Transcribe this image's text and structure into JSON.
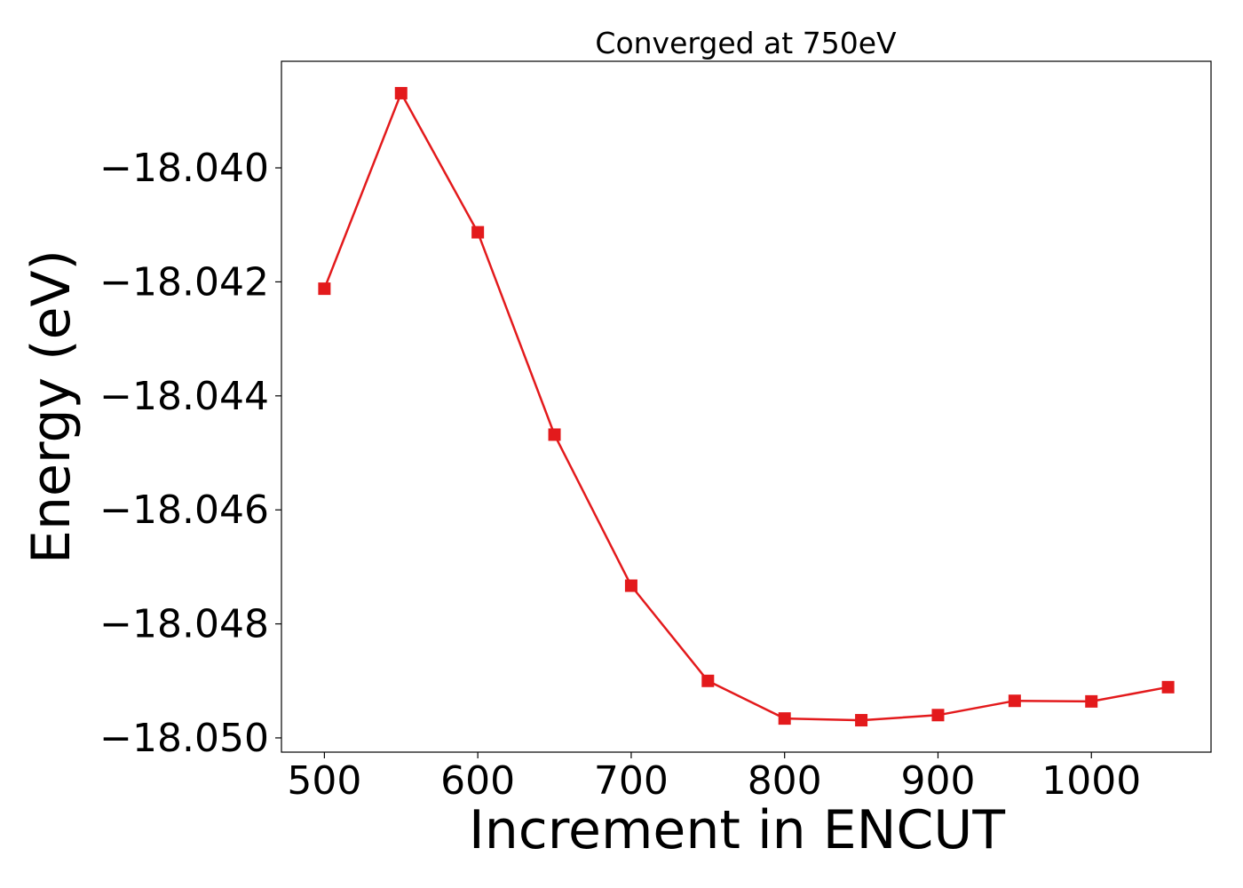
{
  "chart_data": {
    "type": "line",
    "title": "Converged at 750eV",
    "xlabel": "Increment in ENCUT",
    "ylabel": "Energy (eV)",
    "xlim": [
      472,
      1078
    ],
    "ylim": [
      -18.05025,
      -18.03813
    ],
    "x_ticks": [
      500,
      600,
      700,
      800,
      900,
      1000
    ],
    "x_tick_labels": [
      "500",
      "600",
      "700",
      "800",
      "900",
      "1000"
    ],
    "y_ticks": [
      -18.04,
      -18.042,
      -18.044,
      -18.046,
      -18.048,
      -18.05
    ],
    "y_tick_labels": [
      "−18.040",
      "−18.042",
      "−18.044",
      "−18.046",
      "−18.048",
      "−18.050"
    ],
    "grid": false,
    "color": "#e31a1c",
    "marker": "square",
    "series": [
      {
        "x": [
          500,
          550,
          600,
          650,
          700,
          750,
          800,
          850,
          900,
          950,
          1000,
          1050
        ],
        "values": [
          -18.04212,
          -18.03869,
          -18.04113,
          -18.04468,
          -18.04733,
          -18.049,
          -18.04966,
          -18.04969,
          -18.0496,
          -18.04935,
          -18.04936,
          -18.04911
        ]
      }
    ]
  }
}
